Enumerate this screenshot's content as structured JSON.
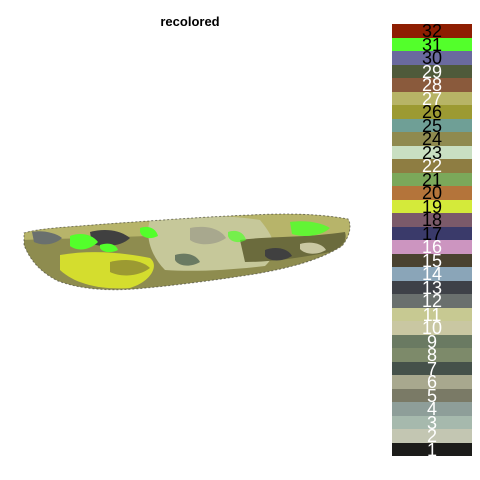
{
  "title": "recolored",
  "image": {
    "description_icon": "recolored-segmentation-scan",
    "main_colors": [
      "#b7b46a",
      "#c6c89a",
      "#6b6b3d",
      "#9c9a4a",
      "#53ff2b",
      "#d4dd2e",
      "#404040",
      "#8e8c5b"
    ]
  },
  "legend": {
    "items": [
      {
        "label": "32",
        "color": "#8e1e02",
        "text": "#000000"
      },
      {
        "label": "31",
        "color": "#53ff2b",
        "text": "#000000"
      },
      {
        "label": "30",
        "color": "#6a6a9e",
        "text": "#000000"
      },
      {
        "label": "29",
        "color": "#4f5a3a",
        "text": "#ffffff"
      },
      {
        "label": "28",
        "color": "#8a5a3c",
        "text": "#ffffff"
      },
      {
        "label": "27",
        "color": "#b7b466",
        "text": "#ffffff"
      },
      {
        "label": "26",
        "color": "#9c9a32",
        "text": "#000000"
      },
      {
        "label": "25",
        "color": "#6f9f96",
        "text": "#000000"
      },
      {
        "label": "24",
        "color": "#8f8a4f",
        "text": "#000000"
      },
      {
        "label": "23",
        "color": "#c9dfc2",
        "text": "#000000"
      },
      {
        "label": "22",
        "color": "#8e7d42",
        "text": "#ffffff"
      },
      {
        "label": "21",
        "color": "#7ba85a",
        "text": "#000000"
      },
      {
        "label": "20",
        "color": "#b4743a",
        "text": "#000000"
      },
      {
        "label": "19",
        "color": "#d4ea3a",
        "text": "#000000"
      },
      {
        "label": "18",
        "color": "#7b5a6a",
        "text": "#000000"
      },
      {
        "label": "17",
        "color": "#3a3a6a",
        "text": "#000000"
      },
      {
        "label": "16",
        "color": "#cc95c0",
        "text": "#ffffff"
      },
      {
        "label": "15",
        "color": "#4a4230",
        "text": "#ffffff"
      },
      {
        "label": "14",
        "color": "#8aa5b8",
        "text": "#ffffff"
      },
      {
        "label": "13",
        "color": "#3e4148",
        "text": "#ffffff"
      },
      {
        "label": "12",
        "color": "#6a706e",
        "text": "#ffffff"
      },
      {
        "label": "11",
        "color": "#c7c992",
        "text": "#ffffff"
      },
      {
        "label": "10",
        "color": "#c9c7a2",
        "text": "#ffffff"
      },
      {
        "label": "9",
        "color": "#6a7a62",
        "text": "#ffffff"
      },
      {
        "label": "8",
        "color": "#7d8a6a",
        "text": "#ffffff"
      },
      {
        "label": "7",
        "color": "#45514a",
        "text": "#ffffff"
      },
      {
        "label": "6",
        "color": "#a8a88e",
        "text": "#ffffff"
      },
      {
        "label": "5",
        "color": "#7a7a66",
        "text": "#ffffff"
      },
      {
        "label": "4",
        "color": "#8e9e99",
        "text": "#ffffff"
      },
      {
        "label": "3",
        "color": "#a6b9ad",
        "text": "#ffffff"
      },
      {
        "label": "2",
        "color": "#c3c6b2",
        "text": "#ffffff"
      },
      {
        "label": "1",
        "color": "#1c1c1a",
        "text": "#ffffff"
      }
    ]
  }
}
